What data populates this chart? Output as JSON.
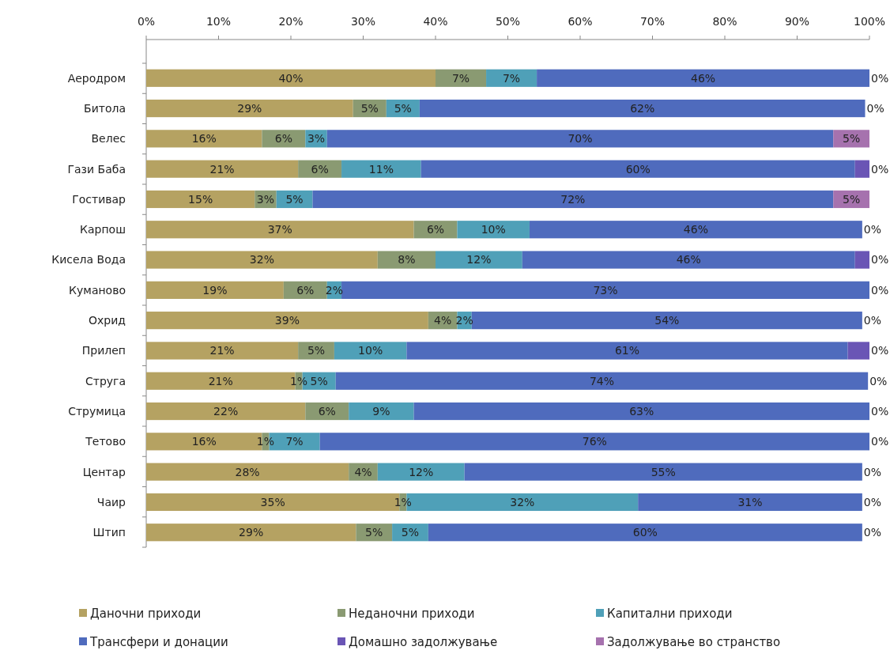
{
  "chart_data": {
    "type": "bar",
    "orientation": "horizontal",
    "stacked": true,
    "legend": "bottom",
    "grid": false,
    "categories": [
      "Аеродром",
      "Битола",
      "Велес",
      "Гази Баба",
      "Гостивар",
      "Карпош",
      "Кисела Вода",
      "Куманово",
      "Охрид",
      "Прилеп",
      "Струга",
      "Струмица",
      "Тетово",
      "Центар",
      "Чаир",
      "Штип"
    ],
    "xlim": [
      0,
      100
    ],
    "xticks": [
      {
        "value": 0,
        "label": "0%"
      },
      {
        "value": 10,
        "label": "10%"
      },
      {
        "value": 20,
        "label": "20%"
      },
      {
        "value": 30,
        "label": "30%"
      },
      {
        "value": 40,
        "label": "40%"
      },
      {
        "value": 50,
        "label": "50%"
      },
      {
        "value": 60,
        "label": "60%"
      },
      {
        "value": 70,
        "label": "70%"
      },
      {
        "value": 80,
        "label": "80%"
      },
      {
        "value": 90,
        "label": "90%"
      },
      {
        "value": 100,
        "label": "100%"
      }
    ],
    "series": [
      {
        "name": "Даночни приходи",
        "color": "#b5a262",
        "values": [
          40,
          28.6,
          16,
          21,
          15,
          37,
          32,
          19,
          39,
          21,
          20.6,
          22,
          16,
          28,
          35,
          29
        ],
        "value_labels": [
          "40%",
          "29%",
          "16%",
          "21%",
          "15%",
          "37%",
          "32%",
          "19%",
          "39%",
          "21%",
          "21%",
          "22%",
          "16%",
          "28%",
          "35%",
          "29%"
        ]
      },
      {
        "name": "Неданочни приходи",
        "color": "#8a9a72",
        "values": [
          7,
          4.6,
          6,
          6,
          3,
          6,
          8,
          6,
          4,
          5,
          1,
          6,
          1,
          4,
          1,
          5
        ],
        "value_labels": [
          "7%",
          "5%",
          "6%",
          "6%",
          "3%",
          "6%",
          "8%",
          "6%",
          "4%",
          "5%",
          "1%",
          "6%",
          "1%",
          "4%",
          "1%",
          "5%"
        ]
      },
      {
        "name": "Капитални приходи",
        "color": "#4fa0b8",
        "values": [
          7,
          4.6,
          3,
          11,
          5,
          10,
          12,
          2,
          2,
          10,
          4.6,
          9,
          7,
          12,
          32,
          5
        ],
        "value_labels": [
          "7%",
          "5%",
          "3%",
          "11%",
          "5%",
          "10%",
          "12%",
          "2%",
          "2%",
          "10%",
          "5%",
          "9%",
          "7%",
          "12%",
          "32%",
          "5%"
        ]
      },
      {
        "name": "Трансфери и донации",
        "color": "#4f6bbd",
        "values": [
          46,
          61.6,
          70,
          60,
          72,
          46,
          46,
          73,
          54,
          61,
          73.6,
          63,
          76,
          55,
          31,
          60
        ],
        "value_labels": [
          "46%",
          "62%",
          "70%",
          "60%",
          "72%",
          "46%",
          "46%",
          "73%",
          "54%",
          "61%",
          "74%",
          "63%",
          "76%",
          "55%",
          "31%",
          "60%"
        ]
      },
      {
        "name": "Домашно задолжување",
        "color": "#6a55b5",
        "values": [
          0,
          0,
          0,
          2,
          0,
          0,
          2,
          0,
          0,
          3,
          0,
          0,
          0,
          0,
          0,
          0
        ],
        "value_labels": [
          null,
          null,
          null,
          null,
          null,
          null,
          null,
          null,
          null,
          null,
          null,
          null,
          null,
          null,
          null,
          null
        ]
      },
      {
        "name": "Задолжување во странство",
        "color": "#a672ae",
        "values": [
          0,
          0,
          5,
          0,
          5,
          0,
          0,
          0,
          0,
          0,
          0,
          0,
          0,
          0,
          0,
          0
        ],
        "value_labels": [
          "0%",
          "0%",
          "5%",
          "0%",
          "5%",
          "0%",
          "0%",
          "0%",
          "0%",
          "0%",
          "0%",
          "0%",
          "0%",
          "0%",
          "0%",
          "0%"
        ]
      }
    ]
  }
}
